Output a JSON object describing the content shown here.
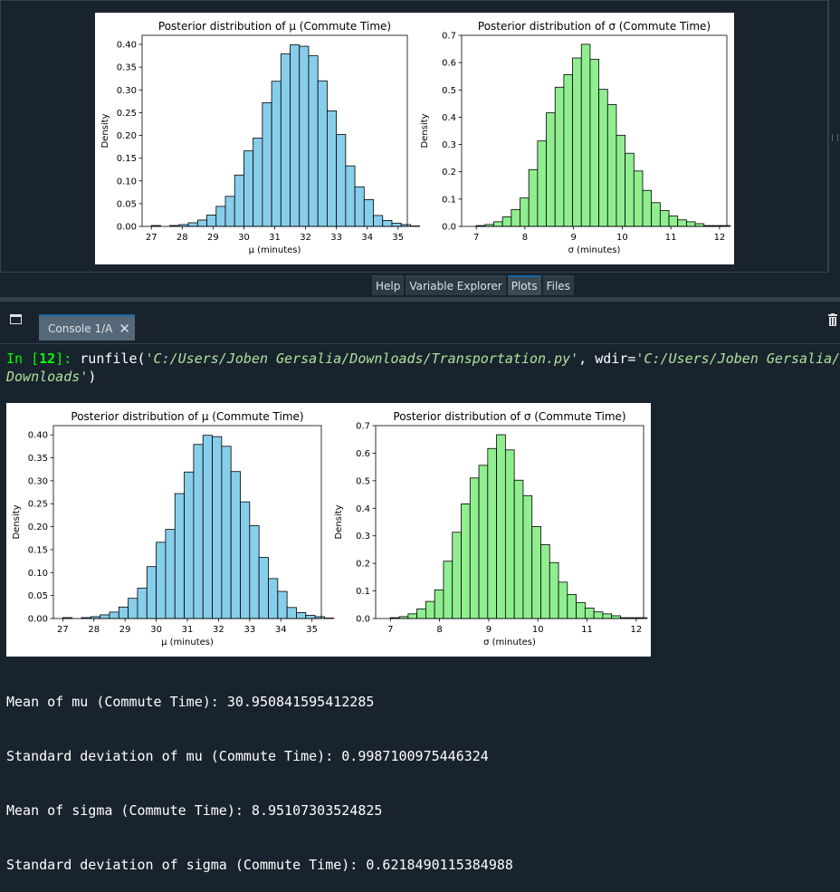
{
  "plots_pane": {
    "tabs": [
      "Help",
      "Variable Explorer",
      "Plots",
      "Files"
    ],
    "active_tab": "Plots"
  },
  "console": {
    "tab_label": "Console 1/A",
    "prompt_in": "In [",
    "prompt_num": "12",
    "prompt_close": "]: ",
    "command_func": "runfile(",
    "command_arg1": "'C:/Users/Joben Gersalia/Downloads/Transportation.py'",
    "command_sep": ", wdir=",
    "command_arg2_part1": "'C:/Users/Joben Gersalia/",
    "command_arg2_part2": "Downloads'",
    "command_end": ")",
    "output_lines": [
      "Mean of mu (Commute Time): 30.950841595412285",
      "Standard deviation of mu (Commute Time): 0.9987100975446324",
      "Mean of sigma (Commute Time): 8.95107303524825",
      "Standard deviation of sigma (Commute Time): 0.6218490115384988"
    ]
  },
  "colors": {
    "background": "#19232d",
    "mu_fill": "#87ceeb",
    "sigma_fill": "#90ee90",
    "accent": "#1464a0",
    "prompt_green": "#00ff00",
    "string_green": "#aee29d"
  },
  "icons": [
    "pane-options-icon",
    "close-icon",
    "trash-icon"
  ],
  "chart_data": [
    {
      "type": "bar",
      "title": "Posterior distribution of μ (Commute Time)",
      "xlabel": "μ (minutes)",
      "ylabel": "Density",
      "xlim": [
        26.7,
        35.3
      ],
      "ylim": [
        0,
        0.42
      ],
      "xticks": [
        "27",
        "28",
        "29",
        "30",
        "31",
        "32",
        "33",
        "34",
        "35"
      ],
      "yticks": [
        "0.00",
        "0.05",
        "0.10",
        "0.15",
        "0.20",
        "0.25",
        "0.30",
        "0.35",
        "0.40"
      ],
      "bin_start": 27.0,
      "bin_width": 0.3,
      "values": [
        0.002,
        0.0,
        0.002,
        0.004,
        0.008,
        0.014,
        0.025,
        0.044,
        0.066,
        0.113,
        0.166,
        0.194,
        0.272,
        0.319,
        0.379,
        0.399,
        0.396,
        0.375,
        0.32,
        0.254,
        0.202,
        0.133,
        0.087,
        0.059,
        0.024,
        0.013,
        0.007,
        0.004,
        0.001
      ],
      "grid": false
    },
    {
      "type": "bar",
      "title": "Posterior distribution of σ (Commute Time)",
      "xlabel": "σ (minutes)",
      "ylabel": "Density",
      "xlim": [
        6.7,
        12.15
      ],
      "ylim": [
        0,
        0.7
      ],
      "xticks": [
        "7",
        "8",
        "9",
        "10",
        "11",
        "12"
      ],
      "yticks": [
        "0.0",
        "0.1",
        "0.2",
        "0.3",
        "0.4",
        "0.5",
        "0.6",
        "0.7"
      ],
      "bin_start": 7.0,
      "bin_width": 0.18,
      "values": [
        0.003,
        0.007,
        0.017,
        0.035,
        0.062,
        0.104,
        0.208,
        0.313,
        0.416,
        0.51,
        0.556,
        0.617,
        0.667,
        0.612,
        0.502,
        0.446,
        0.334,
        0.268,
        0.203,
        0.132,
        0.087,
        0.058,
        0.038,
        0.024,
        0.017,
        0.01,
        0.003,
        0.003,
        0.003,
        0.0
      ],
      "grid": false
    }
  ]
}
